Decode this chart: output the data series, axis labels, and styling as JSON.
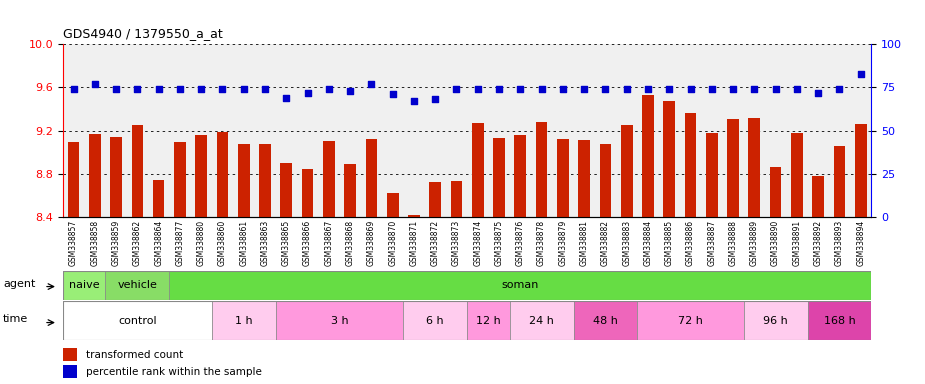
{
  "title": "GDS4940 / 1379550_a_at",
  "samples": [
    "GSM338857",
    "GSM338858",
    "GSM338859",
    "GSM338862",
    "GSM338864",
    "GSM338877",
    "GSM338880",
    "GSM338860",
    "GSM338861",
    "GSM338863",
    "GSM338865",
    "GSM338866",
    "GSM338867",
    "GSM338868",
    "GSM338869",
    "GSM338870",
    "GSM338871",
    "GSM338872",
    "GSM338873",
    "GSM338874",
    "GSM338875",
    "GSM338876",
    "GSM338878",
    "GSM338879",
    "GSM338881",
    "GSM338882",
    "GSM338883",
    "GSM338884",
    "GSM338885",
    "GSM338886",
    "GSM338887",
    "GSM338888",
    "GSM338889",
    "GSM338890",
    "GSM338891",
    "GSM338892",
    "GSM338893",
    "GSM338894"
  ],
  "bar_values": [
    9.09,
    9.17,
    9.14,
    9.25,
    8.74,
    9.09,
    9.16,
    9.19,
    9.08,
    9.08,
    8.9,
    8.84,
    9.1,
    8.89,
    9.12,
    8.62,
    8.42,
    8.72,
    8.73,
    9.27,
    9.13,
    9.16,
    9.28,
    9.12,
    9.11,
    9.08,
    9.25,
    9.53,
    9.47,
    9.36,
    9.18,
    9.31,
    9.32,
    8.86,
    9.18,
    8.78,
    9.06,
    9.26
  ],
  "percentile_values": [
    74,
    77,
    74,
    74,
    74,
    74,
    74,
    74,
    74,
    74,
    69,
    72,
    74,
    73,
    77,
    71,
    67,
    68,
    74,
    74,
    74,
    74,
    74,
    74,
    74,
    74,
    74,
    74,
    74,
    74,
    74,
    74,
    74,
    74,
    74,
    72,
    74,
    83
  ],
  "ylim_left": [
    8.4,
    10.0
  ],
  "ylim_right": [
    0,
    100
  ],
  "yticks_left": [
    8.4,
    8.8,
    9.2,
    9.6,
    10.0
  ],
  "yticks_right": [
    0,
    25,
    50,
    75,
    100
  ],
  "bar_color": "#cc2200",
  "dot_color": "#0000cc",
  "bg_color": "#f0f0f0",
  "agent_groups": [
    {
      "label": "naive",
      "start": 0,
      "end": 2,
      "color": "#99ee77"
    },
    {
      "label": "vehicle",
      "start": 2,
      "end": 5,
      "color": "#88dd66"
    },
    {
      "label": "soman",
      "start": 5,
      "end": 38,
      "color": "#66dd44"
    }
  ],
  "time_groups": [
    {
      "label": "control",
      "start": 0,
      "end": 7,
      "color": "#ffffff"
    },
    {
      "label": "1 h",
      "start": 7,
      "end": 10,
      "color": "#ffaaee"
    },
    {
      "label": "3 h",
      "start": 10,
      "end": 16,
      "color": "#ff88ee"
    },
    {
      "label": "6 h",
      "start": 16,
      "end": 19,
      "color": "#ffbbff"
    },
    {
      "label": "12 h",
      "start": 19,
      "end": 21,
      "color": "#ff99ee"
    },
    {
      "label": "24 h",
      "start": 21,
      "end": 24,
      "color": "#ffbbff"
    },
    {
      "label": "48 h",
      "start": 24,
      "end": 27,
      "color": "#ee66cc"
    },
    {
      "label": "72 h",
      "start": 27,
      "end": 32,
      "color": "#ff88ee"
    },
    {
      "label": "96 h",
      "start": 32,
      "end": 35,
      "color": "#ffbbff"
    },
    {
      "label": "168 h",
      "start": 35,
      "end": 38,
      "color": "#ee55cc"
    }
  ]
}
